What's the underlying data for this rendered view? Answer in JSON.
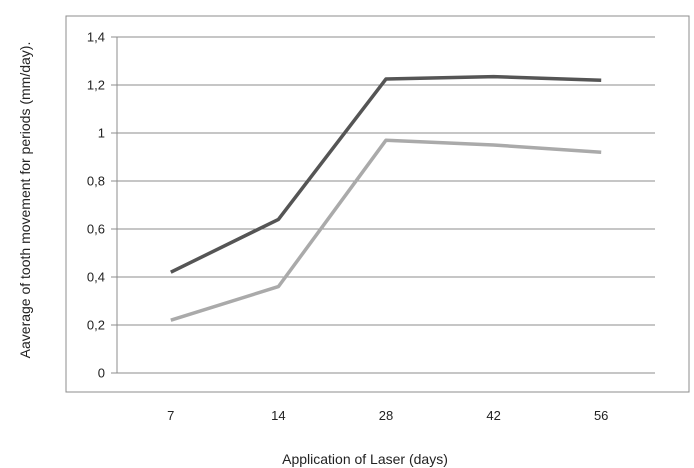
{
  "chart_data": {
    "type": "line",
    "title": "",
    "xlabel": "Application of Laser (days)",
    "ylabel": "Aaverage  of tooth movement for periods (mm/day).",
    "categories": [
      "7",
      "14",
      "28",
      "42",
      "56"
    ],
    "ylim": [
      0,
      1.4
    ],
    "yticks": [
      0,
      0.2,
      0.4,
      0.6,
      0.8,
      1,
      1.2,
      1.4
    ],
    "ytick_labels": [
      "0",
      "0,2",
      "0,4",
      "0,6",
      "0,8",
      "1",
      "1,2",
      "1,4"
    ],
    "grid": true,
    "legend": "none",
    "series": [
      {
        "values": [
          0.42,
          0.64,
          1.225,
          1.235,
          1.22
        ],
        "color": "#555555"
      },
      {
        "values": [
          0.22,
          0.36,
          0.97,
          0.95,
          0.92
        ],
        "color": "#aaaaaa"
      }
    ]
  }
}
